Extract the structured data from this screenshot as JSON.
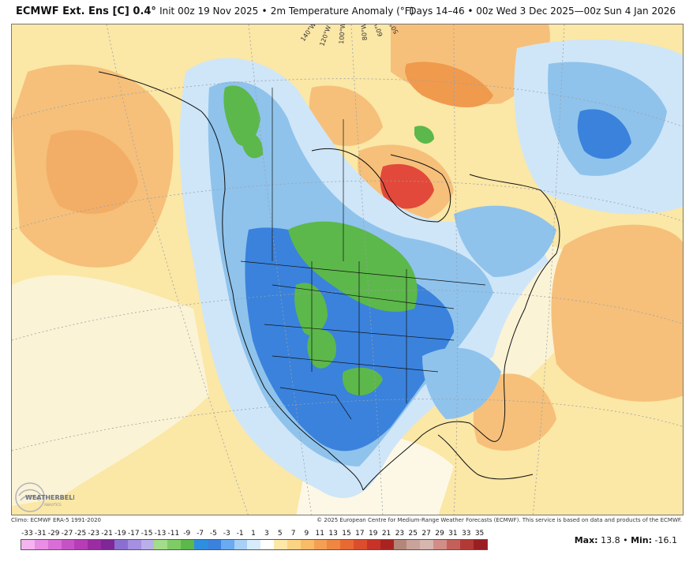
{
  "header": {
    "model": "ECMWF Ext. Ens [C] 0.4°",
    "init": "Init 00z 19 Nov 2025",
    "separator": "•",
    "field": "2m Temperature Anomaly (°F)",
    "valid": "Days 14–46 • 00z Wed 3 Dec 2025—00z Sun 4 Jan 2026"
  },
  "map": {
    "longitude_labels": [
      "140°W",
      "120°W",
      "100°W",
      "80°W",
      "60°W",
      "50°W"
    ],
    "colors": {
      "warm_light": "#fbe7a6",
      "warm_mid": "#f6c07a",
      "warm_orange": "#f09a4d",
      "warm_red": "#e2493a",
      "cool_light": "#cfe6f8",
      "cool_mid": "#8fc3ec",
      "cool_blue": "#3a82dc",
      "cool_deep": "#1f5fc8",
      "green": "#5cb84a",
      "land_line": "#111111",
      "graticule": "#9aa0a8"
    }
  },
  "logo": {
    "text": "WEATHERBELL",
    "sub": "ANALYTICS"
  },
  "footer": {
    "climo": "Climo: ECMWF ERA-5 1991-2020",
    "copyright": "© 2025 European Centre for Medium-Range Weather Forecasts (ECMWF). This service is based on data and products of the ECMWF."
  },
  "colorbar": {
    "labels": [
      "-33",
      "-31",
      "-29",
      "-27",
      "-25",
      "-23",
      "-21",
      "-19",
      "-17",
      "-15",
      "-13",
      "-11",
      "-9",
      "-7",
      "-5",
      "-3",
      "-1",
      "1",
      "3",
      "5",
      "7",
      "9",
      "11",
      "13",
      "15",
      "17",
      "19",
      "21",
      "23",
      "25",
      "27",
      "29",
      "31",
      "33",
      "35"
    ],
    "colors": [
      "#f4b4f0",
      "#e98ee4",
      "#d96fd6",
      "#c653c6",
      "#b63db6",
      "#9b2ca3",
      "#7e2796",
      "#8a6fd0",
      "#a58fe0",
      "#b9b0ea",
      "#a3dc8a",
      "#7fcc66",
      "#5cb84a",
      "#2e8fe0",
      "#3a82dc",
      "#6aaaf0",
      "#a8d0f6",
      "#d6ecfb",
      "#ffffff",
      "#fde8a8",
      "#fbd384",
      "#f8bb68",
      "#f4a053",
      "#ef8641",
      "#e86a33",
      "#dc4d2d",
      "#c73328",
      "#a92421",
      "#b4867a",
      "#c9a39a",
      "#d8b6b0",
      "#d28d86",
      "#c4605a",
      "#b23a36",
      "#9a1f22"
    ]
  },
  "stats": {
    "max_label": "Max:",
    "max_value": "13.8",
    "sep": "•",
    "min_label": "Min:",
    "min_value": "-16.1"
  }
}
